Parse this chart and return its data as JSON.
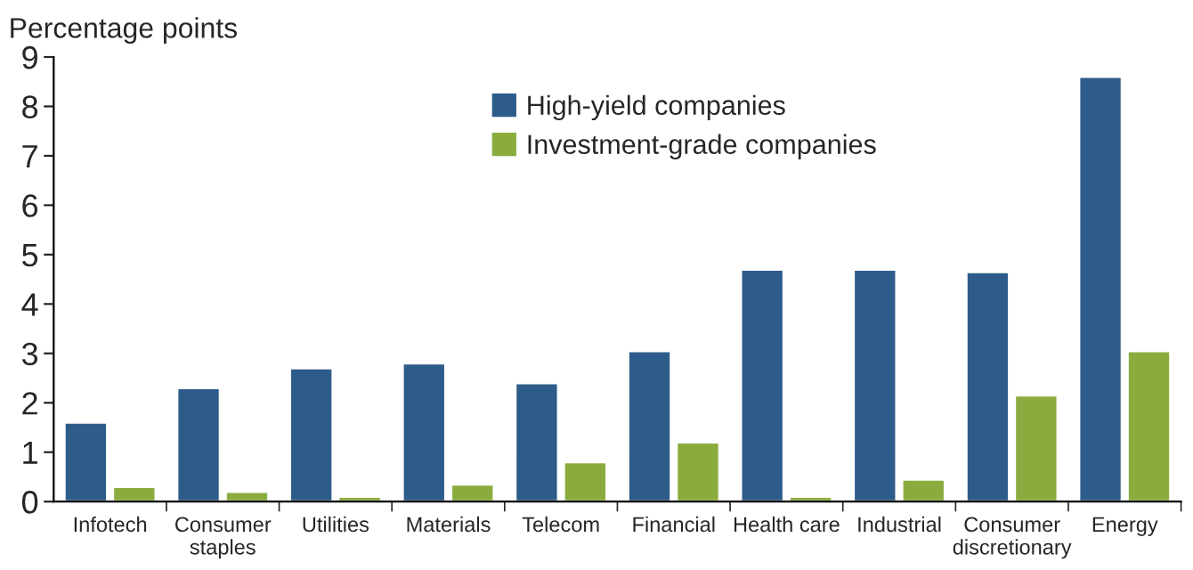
{
  "chart_data": {
    "type": "bar",
    "ylabel": "Percentage points",
    "categories": [
      "Infotech",
      "Consumer\nstaples",
      "Utilities",
      "Materials",
      "Telecom",
      "Financial",
      "Health care",
      "Industrial",
      "Consumer\ndiscretionary",
      "Energy"
    ],
    "series": [
      {
        "name": "High-yield companies",
        "color": "#2e5c8a",
        "values": [
          1.6,
          2.3,
          2.7,
          2.8,
          2.4,
          3.05,
          4.7,
          4.7,
          4.65,
          8.6
        ]
      },
      {
        "name": "Investment-grade companies",
        "color": "#8aac3e",
        "values": [
          0.3,
          0.2,
          0.1,
          0.35,
          0.8,
          1.2,
          0.1,
          0.45,
          2.15,
          3.05
        ]
      }
    ],
    "ylim": [
      0,
      9
    ],
    "yticks": [
      0,
      1,
      2,
      3,
      4,
      5,
      6,
      7,
      8,
      9
    ],
    "grid": false,
    "legend": "top"
  }
}
